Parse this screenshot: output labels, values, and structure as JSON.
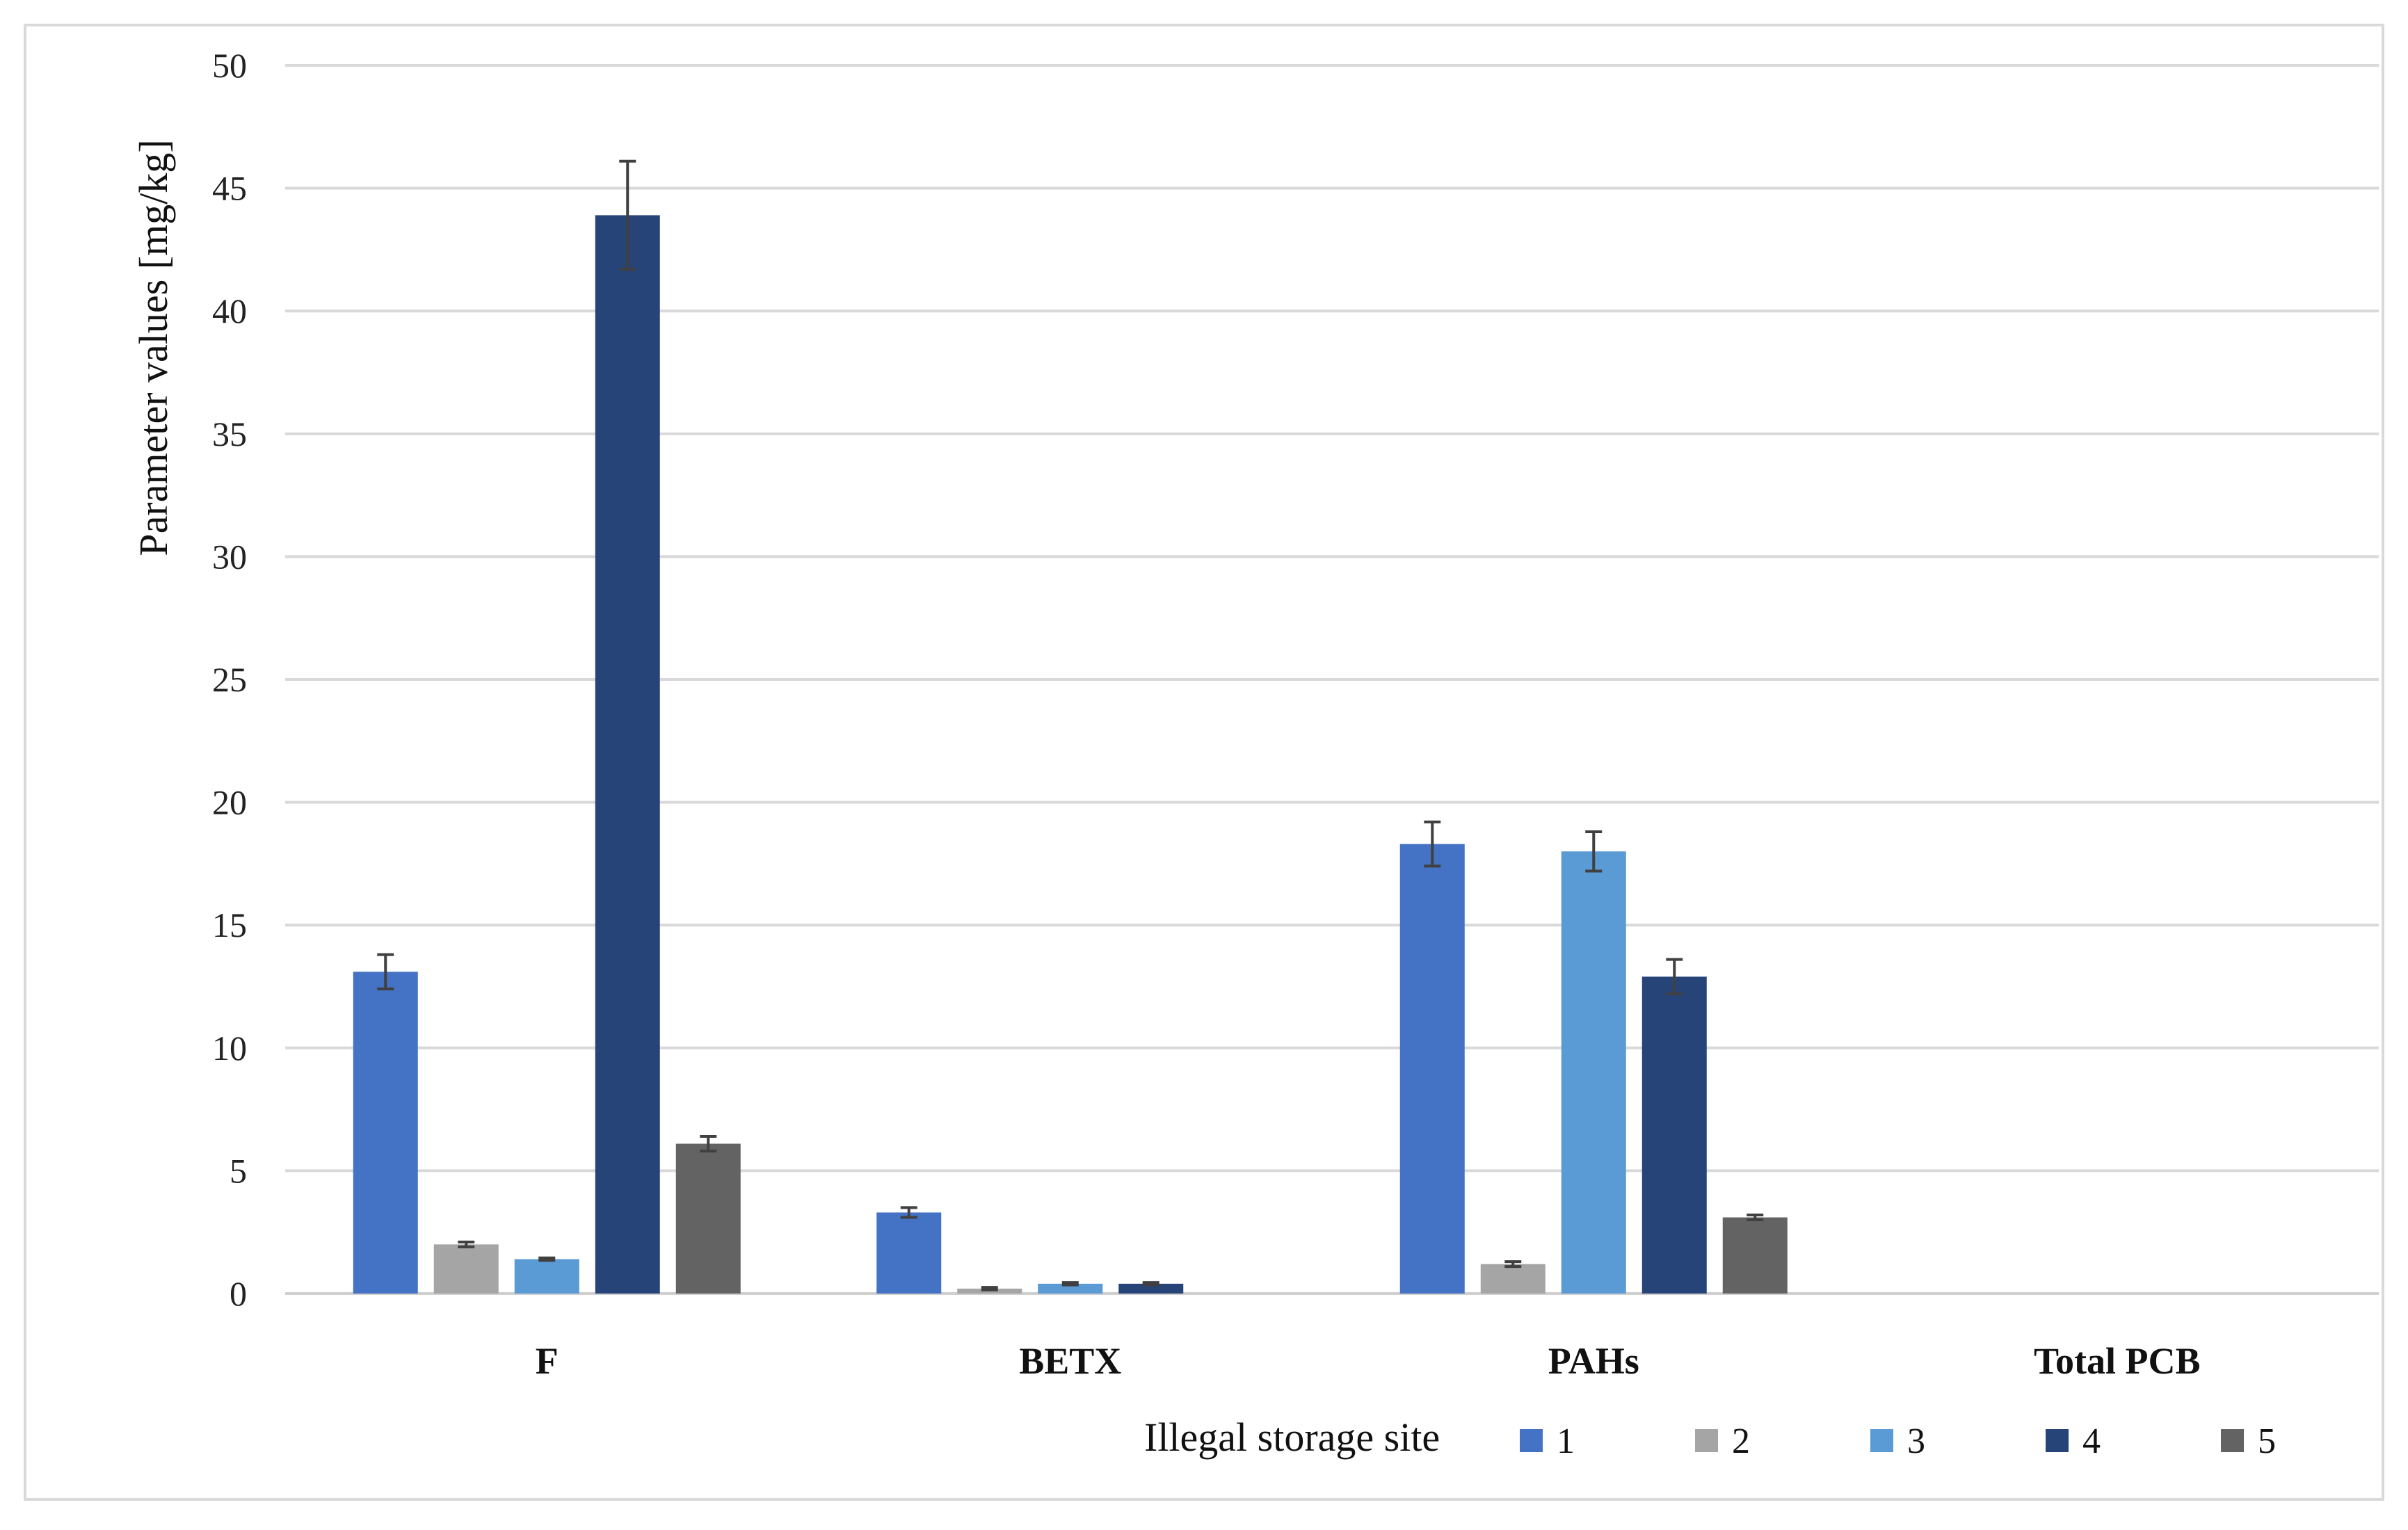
{
  "chart_data": {
    "type": "bar",
    "title": "",
    "xlabel": "",
    "ylabel": "Parameter values [mg/kg]",
    "ylim": [
      0,
      50
    ],
    "yticks": [
      0,
      5,
      10,
      15,
      20,
      25,
      30,
      35,
      40,
      45,
      50
    ],
    "grid": true,
    "categories": [
      "F",
      "BETX",
      "PAHs",
      "Total PCB"
    ],
    "legend": {
      "title": "Illegal storage site",
      "position": "bottom-right"
    },
    "series": [
      {
        "name": "1",
        "color": "#4472c4",
        "values": [
          13.1,
          3.3,
          18.3,
          0
        ],
        "errors": [
          0.7,
          0.2,
          0.9,
          0
        ]
      },
      {
        "name": "2",
        "color": "#a5a5a5",
        "values": [
          2.0,
          0.2,
          1.2,
          0
        ],
        "errors": [
          0.1,
          0.05,
          0.1,
          0
        ]
      },
      {
        "name": "3",
        "color": "#5b9bd5",
        "values": [
          1.4,
          0.4,
          18.0,
          0
        ],
        "errors": [
          0.05,
          0.05,
          0.8,
          0
        ]
      },
      {
        "name": "4",
        "color": "#264478",
        "values": [
          43.9,
          0.4,
          12.9,
          0
        ],
        "errors": [
          2.2,
          0.05,
          0.7,
          0
        ]
      },
      {
        "name": "5",
        "color": "#636363",
        "values": [
          6.1,
          0,
          3.1,
          0
        ],
        "errors": [
          0.3,
          0,
          0.1,
          0
        ]
      }
    ]
  }
}
